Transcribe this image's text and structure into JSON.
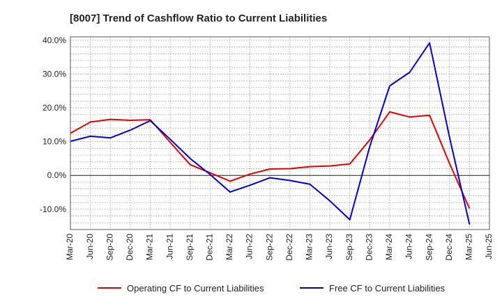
{
  "chart_data": {
    "type": "line",
    "title": "[8007]  Trend of Cashflow Ratio to Current Liabilities",
    "xlabel": "",
    "ylabel": "",
    "categories": [
      "Mar-20",
      "Jun-20",
      "Sep-20",
      "Dec-20",
      "Mar-21",
      "Jun-21",
      "Sep-21",
      "Dec-21",
      "Mar-22",
      "Jun-22",
      "Sep-22",
      "Dec-22",
      "Mar-23",
      "Jun-23",
      "Sep-23",
      "Dec-23",
      "Mar-24",
      "Jun-24",
      "Sep-24",
      "Dec-24",
      "Mar-25",
      "Jun-25"
    ],
    "ylim": [
      -16,
      41
    ],
    "yticks": [
      40,
      30,
      20,
      10,
      0,
      -10
    ],
    "ytick_labels": [
      "40.0%",
      "30.0%",
      "20.0%",
      "10.0%",
      "0.0%",
      "-10.0%"
    ],
    "grid": true,
    "legend_position": "bottom",
    "series": [
      {
        "name": "Operating CF to Current Liabilities",
        "color": "#e00000",
        "values": [
          12.5,
          15.8,
          16.6,
          16.3,
          16.5,
          9.8,
          3.2,
          0.8,
          -1.7,
          0.4,
          1.9,
          2.0,
          2.6,
          2.8,
          3.4,
          10.5,
          18.8,
          17.3,
          17.8,
          3.5,
          -9.8,
          null
        ]
      },
      {
        "name": "Free CF to Current Liabilities",
        "color": "#0000cc",
        "values": [
          10.1,
          11.6,
          11.1,
          13.4,
          16.2,
          10.7,
          5.0,
          0.3,
          -4.9,
          -2.9,
          -0.7,
          -1.5,
          -2.6,
          -7.5,
          -13.1,
          8.5,
          26.5,
          30.5,
          39.2,
          11.2,
          -14.5,
          null
        ]
      }
    ]
  }
}
